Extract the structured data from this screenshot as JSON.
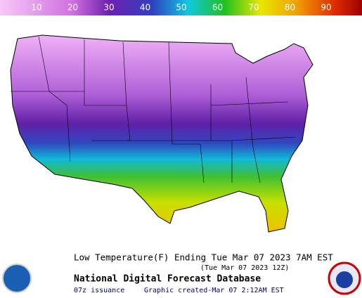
{
  "legend": {
    "ticks": [
      10,
      20,
      30,
      40,
      50,
      60,
      70,
      80,
      90
    ]
  },
  "caption": {
    "title": "Low Temperature(F) Ending Tue Mar 07 2023  7AM EST",
    "subtitle": "(Tue Mar 07 2023 12Z)",
    "source": "National Digital Forecast Database",
    "issuance": "07z issuance",
    "created": "Graphic created-Mar 07  2:12AM EST"
  }
}
